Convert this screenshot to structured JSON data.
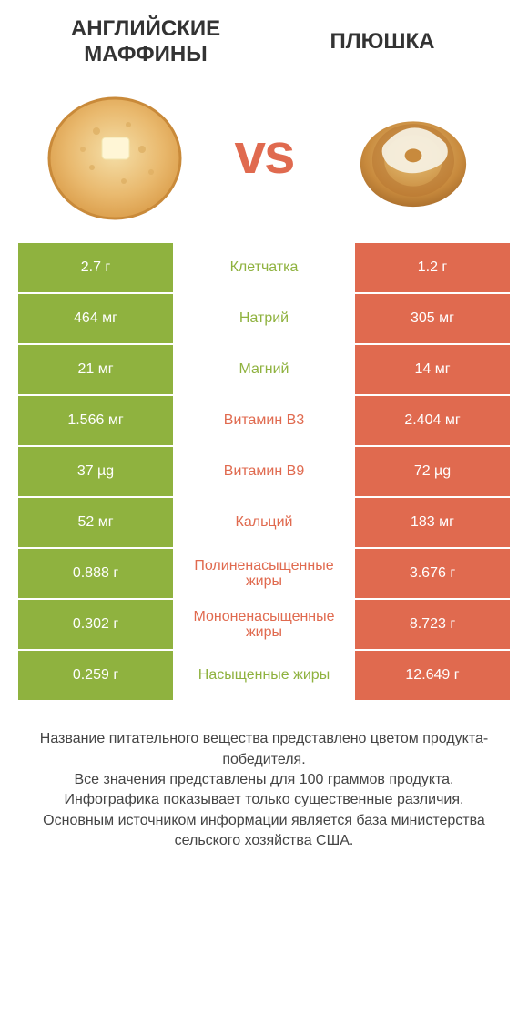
{
  "colors": {
    "left_bg": "#8fb23f",
    "right_bg": "#e06a4f",
    "left_text": "#8fb23f",
    "right_text": "#e06a4f",
    "vs": "#e06a4f"
  },
  "header": {
    "left_title": "АНГЛИЙСКИЕ МАФФИНЫ",
    "right_title": "ПЛЮШКА",
    "vs": "vs"
  },
  "rows": [
    {
      "left": "2.7 г",
      "name": "Клетчатка",
      "right": "1.2 г",
      "winner": "left"
    },
    {
      "left": "464 мг",
      "name": "Натрий",
      "right": "305 мг",
      "winner": "left"
    },
    {
      "left": "21 мг",
      "name": "Магний",
      "right": "14 мг",
      "winner": "left"
    },
    {
      "left": "1.566 мг",
      "name": "Витамин B3",
      "right": "2.404 мг",
      "winner": "right"
    },
    {
      "left": "37 µg",
      "name": "Витамин B9",
      "right": "72 µg",
      "winner": "right"
    },
    {
      "left": "52 мг",
      "name": "Кальций",
      "right": "183 мг",
      "winner": "right"
    },
    {
      "left": "0.888 г",
      "name": "Полиненасыщенные жиры",
      "right": "3.676 г",
      "winner": "right"
    },
    {
      "left": "0.302 г",
      "name": "Мононенасыщенные жиры",
      "right": "8.723 г",
      "winner": "right"
    },
    {
      "left": "0.259 г",
      "name": "Насыщенные жиры",
      "right": "12.649 г",
      "winner": "left"
    }
  ],
  "footer": {
    "line1": "Название питательного вещества представлено цветом продукта-победителя.",
    "line2": "Все значения представлены для 100 граммов продукта.",
    "line3": "Инфографика показывает только существенные различия.",
    "line4": "Основным источником информации является база министерства сельского хозяйства США."
  },
  "typography": {
    "title_fontsize": 24,
    "vs_fontsize": 62,
    "cell_fontsize": 16,
    "footer_fontsize": 16
  }
}
